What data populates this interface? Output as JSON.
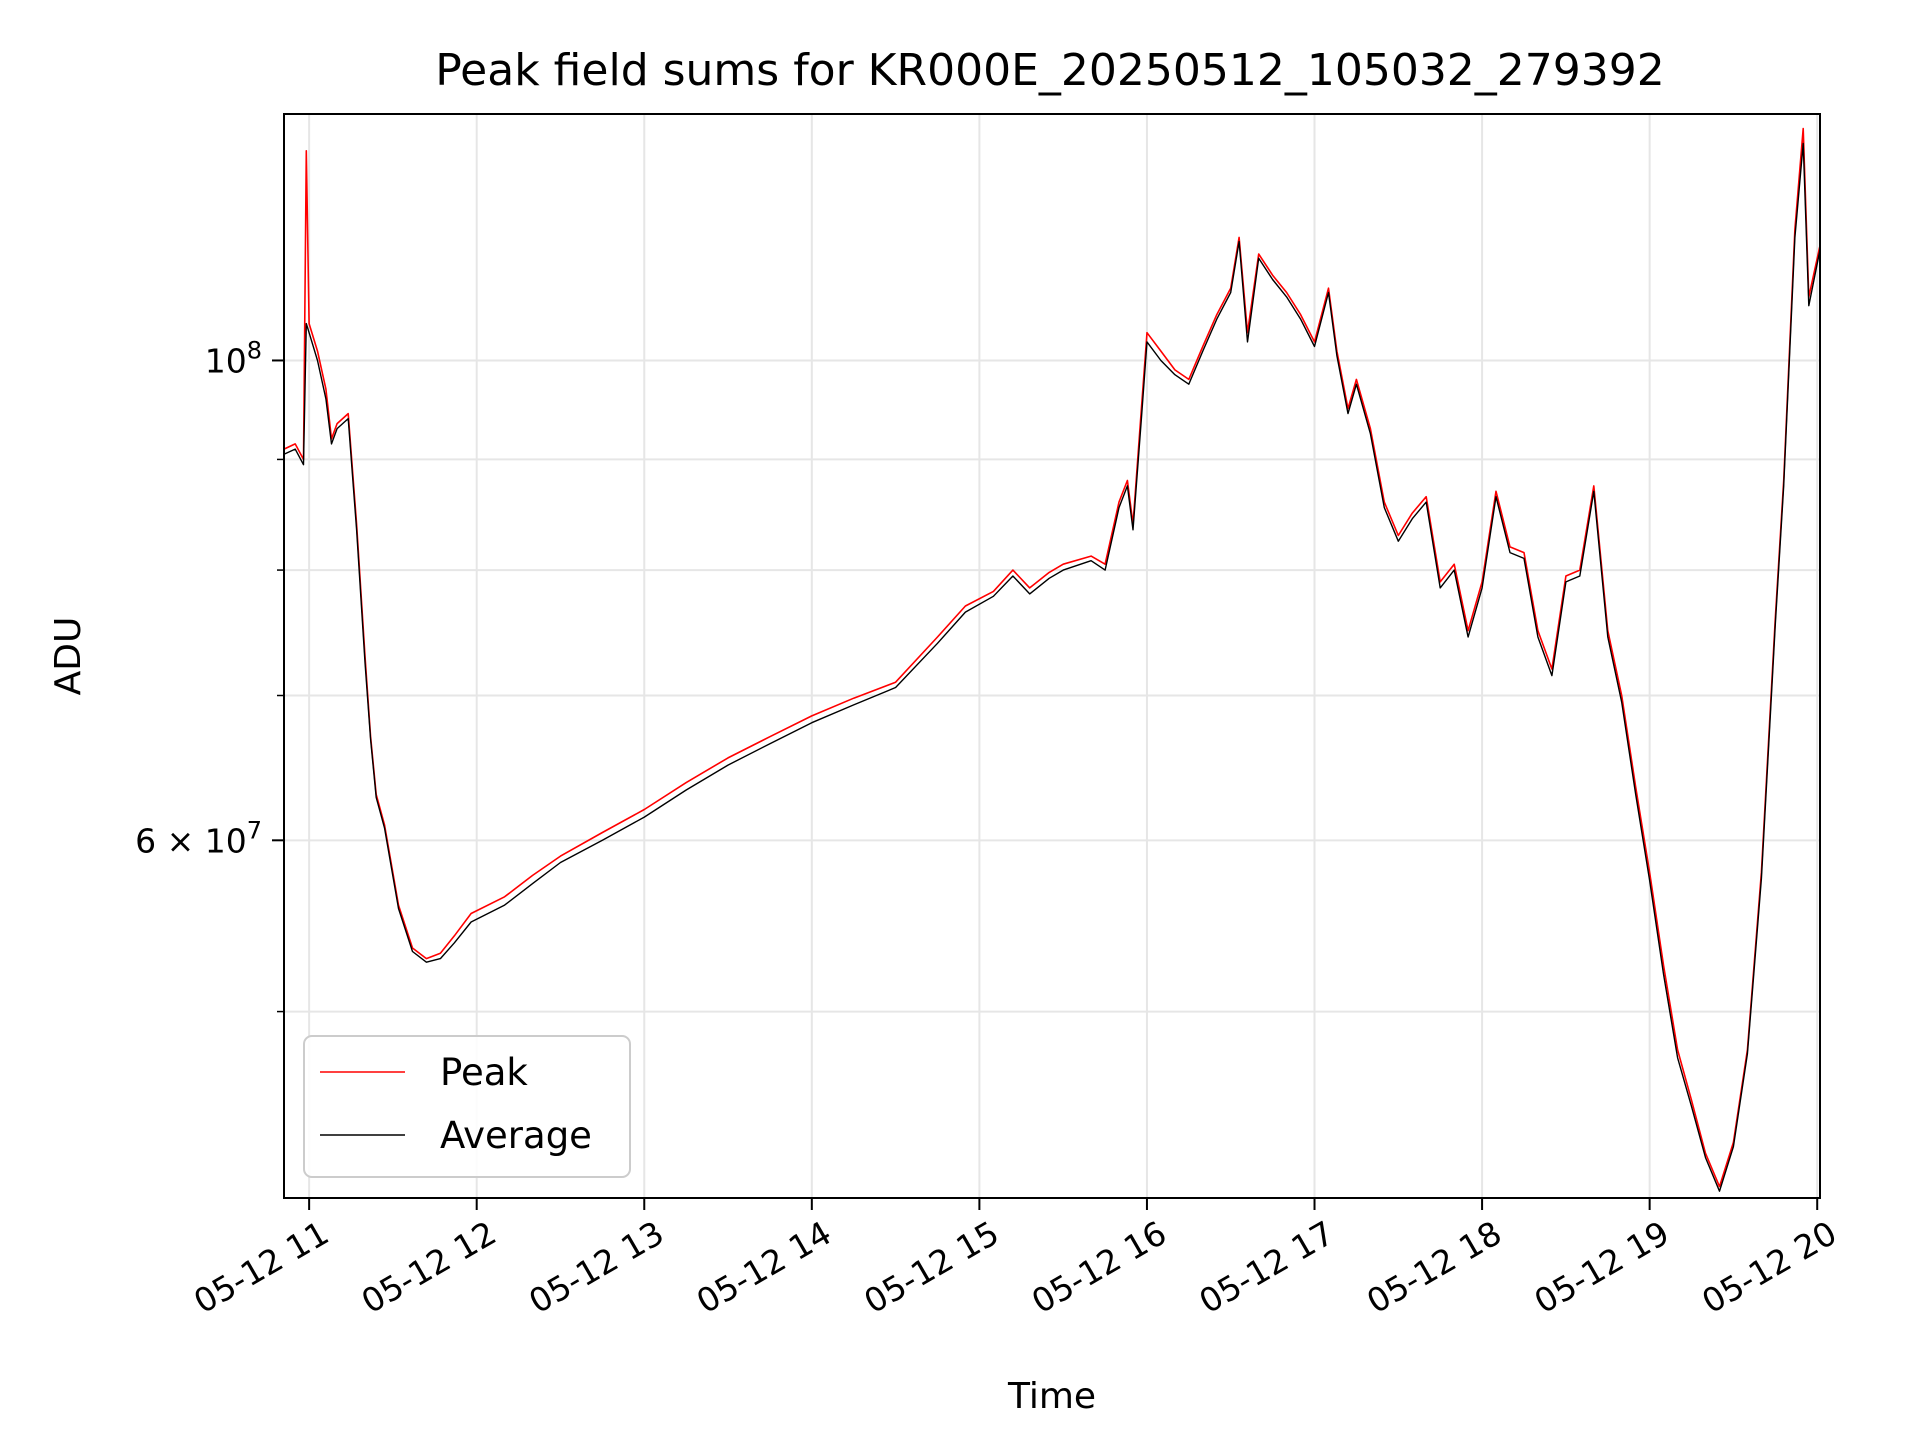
{
  "chart_data": {
    "type": "line",
    "title": "Peak field sums for KR000E_20250512_105032_279392",
    "xlabel": "Time",
    "ylabel": "ADU",
    "y_scale": "log",
    "xlim": [
      "2025-05-12 10:51",
      "2025-05-12 20:01"
    ],
    "ylim": [
      41000000,
      130000000
    ],
    "grid": true,
    "legend_position": "lower-left",
    "x_ticks": [
      {
        "t": "2025-05-12 11:00",
        "label": "05-12 11"
      },
      {
        "t": "2025-05-12 12:00",
        "label": "05-12 12"
      },
      {
        "t": "2025-05-12 13:00",
        "label": "05-12 13"
      },
      {
        "t": "2025-05-12 14:00",
        "label": "05-12 14"
      },
      {
        "t": "2025-05-12 15:00",
        "label": "05-12 15"
      },
      {
        "t": "2025-05-12 16:00",
        "label": "05-12 16"
      },
      {
        "t": "2025-05-12 17:00",
        "label": "05-12 17"
      },
      {
        "t": "2025-05-12 18:00",
        "label": "05-12 18"
      },
      {
        "t": "2025-05-12 19:00",
        "label": "05-12 19"
      },
      {
        "t": "2025-05-12 20:00",
        "label": "05-12 20"
      }
    ],
    "y_major_ticks": [
      {
        "value": 60000000,
        "label_base": "6 × 10",
        "label_exp": "7"
      },
      {
        "value": 100000000,
        "label_base": "10",
        "label_exp": "8"
      }
    ],
    "y_minor_ticks": [
      50000000,
      70000000,
      80000000,
      90000000
    ],
    "series": [
      {
        "name": "Peak",
        "color": "#ff0000",
        "points": [
          [
            "2025-05-12 10:51",
            91000000
          ],
          [
            "2025-05-12 10:55",
            91500000
          ],
          [
            "2025-05-12 10:58",
            90000000
          ],
          [
            "2025-05-12 10:59",
            125000000
          ],
          [
            "2025-05-12 11:00",
            104000000
          ],
          [
            "2025-05-12 11:03",
            101000000
          ],
          [
            "2025-05-12 11:06",
            97000000
          ],
          [
            "2025-05-12 11:08",
            92000000
          ],
          [
            "2025-05-12 11:10",
            93500000
          ],
          [
            "2025-05-12 11:14",
            94500000
          ],
          [
            "2025-05-12 11:17",
            84000000
          ],
          [
            "2025-05-12 11:20",
            73000000
          ],
          [
            "2025-05-12 11:22",
            67000000
          ],
          [
            "2025-05-12 11:24",
            63000000
          ],
          [
            "2025-05-12 11:27",
            61000000
          ],
          [
            "2025-05-12 11:32",
            56000000
          ],
          [
            "2025-05-12 11:37",
            53500000
          ],
          [
            "2025-05-12 11:42",
            52900000
          ],
          [
            "2025-05-12 11:47",
            53200000
          ],
          [
            "2025-05-12 11:52",
            54200000
          ],
          [
            "2025-05-12 11:58",
            55500000
          ],
          [
            "2025-05-12 12:10",
            56500000
          ],
          [
            "2025-05-12 12:20",
            57800000
          ],
          [
            "2025-05-12 12:30",
            59000000
          ],
          [
            "2025-05-12 12:45",
            60500000
          ],
          [
            "2025-05-12 13:00",
            62000000
          ],
          [
            "2025-05-12 13:15",
            63800000
          ],
          [
            "2025-05-12 13:30",
            65500000
          ],
          [
            "2025-05-12 13:45",
            67000000
          ],
          [
            "2025-05-12 14:00",
            68500000
          ],
          [
            "2025-05-12 14:15",
            69800000
          ],
          [
            "2025-05-12 14:30",
            71000000
          ],
          [
            "2025-05-12 14:45",
            74500000
          ],
          [
            "2025-05-12 14:55",
            77000000
          ],
          [
            "2025-05-12 15:05",
            78200000
          ],
          [
            "2025-05-12 15:12",
            80000000
          ],
          [
            "2025-05-12 15:18",
            78500000
          ],
          [
            "2025-05-12 15:25",
            79800000
          ],
          [
            "2025-05-12 15:30",
            80500000
          ],
          [
            "2025-05-12 15:40",
            81200000
          ],
          [
            "2025-05-12 15:45",
            80500000
          ],
          [
            "2025-05-12 15:50",
            86000000
          ],
          [
            "2025-05-12 15:53",
            88000000
          ],
          [
            "2025-05-12 15:55",
            84000000
          ],
          [
            "2025-05-12 15:58",
            95000000
          ],
          [
            "2025-05-12 16:00",
            103000000
          ],
          [
            "2025-05-12 16:05",
            101000000
          ],
          [
            "2025-05-12 16:10",
            99000000
          ],
          [
            "2025-05-12 16:15",
            98000000
          ],
          [
            "2025-05-12 16:20",
            101500000
          ],
          [
            "2025-05-12 16:25",
            105000000
          ],
          [
            "2025-05-12 16:30",
            108000000
          ],
          [
            "2025-05-12 16:33",
            114000000
          ],
          [
            "2025-05-12 16:36",
            103000000
          ],
          [
            "2025-05-12 16:40",
            112000000
          ],
          [
            "2025-05-12 16:45",
            109500000
          ],
          [
            "2025-05-12 16:50",
            107500000
          ],
          [
            "2025-05-12 16:55",
            105000000
          ],
          [
            "2025-05-12 17:00",
            102000000
          ],
          [
            "2025-05-12 17:05",
            108000000
          ],
          [
            "2025-05-12 17:08",
            101000000
          ],
          [
            "2025-05-12 17:12",
            95000000
          ],
          [
            "2025-05-12 17:15",
            98000000
          ],
          [
            "2025-05-12 17:20",
            93000000
          ],
          [
            "2025-05-12 17:25",
            86000000
          ],
          [
            "2025-05-12 17:30",
            83000000
          ],
          [
            "2025-05-12 17:35",
            85000000
          ],
          [
            "2025-05-12 17:40",
            86500000
          ],
          [
            "2025-05-12 17:45",
            79000000
          ],
          [
            "2025-05-12 17:50",
            80500000
          ],
          [
            "2025-05-12 17:55",
            75000000
          ],
          [
            "2025-05-12 18:00",
            79000000
          ],
          [
            "2025-05-12 18:05",
            87000000
          ],
          [
            "2025-05-12 18:10",
            82000000
          ],
          [
            "2025-05-12 18:15",
            81500000
          ],
          [
            "2025-05-12 18:20",
            75000000
          ],
          [
            "2025-05-12 18:25",
            72000000
          ],
          [
            "2025-05-12 18:30",
            79500000
          ],
          [
            "2025-05-12 18:35",
            80000000
          ],
          [
            "2025-05-12 18:40",
            87500000
          ],
          [
            "2025-05-12 18:45",
            75000000
          ],
          [
            "2025-05-12 18:50",
            70000000
          ],
          [
            "2025-05-12 18:55",
            63500000
          ],
          [
            "2025-05-12 19:00",
            58000000
          ],
          [
            "2025-05-12 19:05",
            52500000
          ],
          [
            "2025-05-12 19:10",
            48000000
          ],
          [
            "2025-05-12 19:15",
            45500000
          ],
          [
            "2025-05-12 19:20",
            43000000
          ],
          [
            "2025-05-12 19:25",
            41500000
          ],
          [
            "2025-05-12 19:30",
            43500000
          ],
          [
            "2025-05-12 19:35",
            48000000
          ],
          [
            "2025-05-12 19:40",
            58000000
          ],
          [
            "2025-05-12 19:45",
            76000000
          ],
          [
            "2025-05-12 19:48",
            88000000
          ],
          [
            "2025-05-12 19:52",
            115000000
          ],
          [
            "2025-05-12 19:55",
            128000000
          ],
          [
            "2025-05-12 19:57",
            107000000
          ],
          [
            "2025-05-12 20:01",
            113000000
          ]
        ]
      },
      {
        "name": "Average",
        "color": "#000000",
        "points": [
          [
            "2025-05-12 10:51",
            90500000
          ],
          [
            "2025-05-12 10:55",
            91000000
          ],
          [
            "2025-05-12 10:58",
            89500000
          ],
          [
            "2025-05-12 10:59",
            104000000
          ],
          [
            "2025-05-12 11:00",
            103000000
          ],
          [
            "2025-05-12 11:03",
            100000000
          ],
          [
            "2025-05-12 11:06",
            96000000
          ],
          [
            "2025-05-12 11:08",
            91500000
          ],
          [
            "2025-05-12 11:10",
            93000000
          ],
          [
            "2025-05-12 11:14",
            94000000
          ],
          [
            "2025-05-12 11:17",
            83500000
          ],
          [
            "2025-05-12 11:20",
            72500000
          ],
          [
            "2025-05-12 11:22",
            66800000
          ],
          [
            "2025-05-12 11:24",
            62800000
          ],
          [
            "2025-05-12 11:27",
            60800000
          ],
          [
            "2025-05-12 11:32",
            55800000
          ],
          [
            "2025-05-12 11:37",
            53300000
          ],
          [
            "2025-05-12 11:42",
            52700000
          ],
          [
            "2025-05-12 11:47",
            52900000
          ],
          [
            "2025-05-12 11:52",
            53800000
          ],
          [
            "2025-05-12 11:58",
            55000000
          ],
          [
            "2025-05-12 12:10",
            56000000
          ],
          [
            "2025-05-12 12:20",
            57300000
          ],
          [
            "2025-05-12 12:30",
            58600000
          ],
          [
            "2025-05-12 12:45",
            60000000
          ],
          [
            "2025-05-12 13:00",
            61500000
          ],
          [
            "2025-05-12 13:15",
            63300000
          ],
          [
            "2025-05-12 13:30",
            65000000
          ],
          [
            "2025-05-12 13:45",
            66500000
          ],
          [
            "2025-05-12 14:00",
            68000000
          ],
          [
            "2025-05-12 14:15",
            69300000
          ],
          [
            "2025-05-12 14:30",
            70600000
          ],
          [
            "2025-05-12 14:45",
            74000000
          ],
          [
            "2025-05-12 14:55",
            76500000
          ],
          [
            "2025-05-12 15:05",
            77800000
          ],
          [
            "2025-05-12 15:12",
            79500000
          ],
          [
            "2025-05-12 15:18",
            78000000
          ],
          [
            "2025-05-12 15:25",
            79300000
          ],
          [
            "2025-05-12 15:30",
            80000000
          ],
          [
            "2025-05-12 15:40",
            80800000
          ],
          [
            "2025-05-12 15:45",
            80000000
          ],
          [
            "2025-05-12 15:50",
            85500000
          ],
          [
            "2025-05-12 15:53",
            87500000
          ],
          [
            "2025-05-12 15:55",
            83500000
          ],
          [
            "2025-05-12 15:58",
            94000000
          ],
          [
            "2025-05-12 16:00",
            102000000
          ],
          [
            "2025-05-12 16:05",
            100000000
          ],
          [
            "2025-05-12 16:10",
            98500000
          ],
          [
            "2025-05-12 16:15",
            97500000
          ],
          [
            "2025-05-12 16:20",
            101000000
          ],
          [
            "2025-05-12 16:25",
            104500000
          ],
          [
            "2025-05-12 16:30",
            107500000
          ],
          [
            "2025-05-12 16:33",
            113500000
          ],
          [
            "2025-05-12 16:36",
            102000000
          ],
          [
            "2025-05-12 16:40",
            111500000
          ],
          [
            "2025-05-12 16:45",
            109000000
          ],
          [
            "2025-05-12 16:50",
            107000000
          ],
          [
            "2025-05-12 16:55",
            104500000
          ],
          [
            "2025-05-12 17:00",
            101500000
          ],
          [
            "2025-05-12 17:05",
            107500000
          ],
          [
            "2025-05-12 17:08",
            100500000
          ],
          [
            "2025-05-12 17:12",
            94500000
          ],
          [
            "2025-05-12 17:15",
            97500000
          ],
          [
            "2025-05-12 17:20",
            92500000
          ],
          [
            "2025-05-12 17:25",
            85500000
          ],
          [
            "2025-05-12 17:30",
            82500000
          ],
          [
            "2025-05-12 17:35",
            84500000
          ],
          [
            "2025-05-12 17:40",
            86000000
          ],
          [
            "2025-05-12 17:45",
            78500000
          ],
          [
            "2025-05-12 17:50",
            80000000
          ],
          [
            "2025-05-12 17:55",
            74500000
          ],
          [
            "2025-05-12 18:00",
            78500000
          ],
          [
            "2025-05-12 18:05",
            86500000
          ],
          [
            "2025-05-12 18:10",
            81500000
          ],
          [
            "2025-05-12 18:15",
            81000000
          ],
          [
            "2025-05-12 18:20",
            74500000
          ],
          [
            "2025-05-12 18:25",
            71500000
          ],
          [
            "2025-05-12 18:30",
            79000000
          ],
          [
            "2025-05-12 18:35",
            79500000
          ],
          [
            "2025-05-12 18:40",
            87000000
          ],
          [
            "2025-05-12 18:45",
            74500000
          ],
          [
            "2025-05-12 18:50",
            69500000
          ],
          [
            "2025-05-12 18:55",
            63000000
          ],
          [
            "2025-05-12 19:00",
            57500000
          ],
          [
            "2025-05-12 19:05",
            52000000
          ],
          [
            "2025-05-12 19:10",
            47600000
          ],
          [
            "2025-05-12 19:15",
            45200000
          ],
          [
            "2025-05-12 19:20",
            42800000
          ],
          [
            "2025-05-12 19:25",
            41300000
          ],
          [
            "2025-05-12 19:30",
            43300000
          ],
          [
            "2025-05-12 19:35",
            47800000
          ],
          [
            "2025-05-12 19:40",
            57600000
          ],
          [
            "2025-05-12 19:45",
            75500000
          ],
          [
            "2025-05-12 19:48",
            87500000
          ],
          [
            "2025-05-12 19:52",
            114000000
          ],
          [
            "2025-05-12 19:55",
            126000000
          ],
          [
            "2025-05-12 19:57",
            106000000
          ],
          [
            "2025-05-12 20:01",
            112500000
          ]
        ]
      }
    ]
  }
}
